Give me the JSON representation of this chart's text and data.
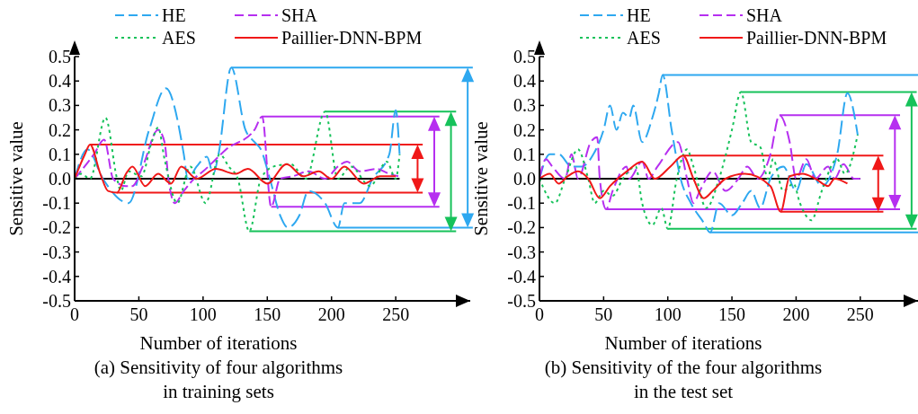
{
  "chart_data": [
    {
      "type": "line",
      "title": "(a) Sensitivity of four algorithms\nin training sets",
      "xlabel": "Number of iterations",
      "ylabel": "Sensitive value",
      "legend": "top",
      "grid": false,
      "xlim": [
        0,
        308
      ],
      "xticks": [
        0,
        50,
        100,
        150,
        200,
        250
      ],
      "ylim": [
        -0.5,
        0.5
      ],
      "yticks": [
        -0.5,
        -0.4,
        -0.3,
        -0.2,
        -0.1,
        {
          "value": 0,
          "label": "0.0"
        },
        0.1,
        0.2,
        0.3,
        0.4,
        0.5
      ],
      "series": [
        {
          "name": "HE",
          "color": "#2ea8f0",
          "line_style": "dashed",
          "x": [
            0,
            10,
            22,
            42,
            58,
            71,
            85,
            88,
            95,
            103,
            108,
            112,
            122,
            133,
            140,
            145,
            152,
            160,
            166,
            175,
            182,
            195,
            205,
            210,
            222,
            232,
            245,
            250,
            253
          ],
          "values": [
            0,
            0.12,
            0,
            -0.1,
            0.2,
            0.37,
            0.1,
            0,
            0.05,
            0.09,
            0.02,
            0.1,
            0.455,
            0.2,
            0.15,
            0.12,
            0,
            -0.15,
            -0.2,
            -0.15,
            -0.05,
            -0.1,
            -0.2,
            -0.1,
            -0.1,
            0,
            0.1,
            0.28,
            0.1
          ]
        },
        {
          "name": "SHA",
          "color": "#b62ff0",
          "line_style": "dashed",
          "x": [
            0,
            15,
            23,
            30,
            40,
            45,
            53,
            65,
            70,
            73,
            78,
            85,
            93,
            100,
            110,
            118,
            140,
            146,
            153,
            160,
            170,
            182,
            195,
            205,
            212,
            222,
            235,
            245,
            252
          ],
          "values": [
            0,
            0.1,
            0.16,
            0,
            -0.03,
            -0.03,
            0.05,
            0.2,
            0.15,
            0,
            -0.1,
            -0.05,
            0,
            0.03,
            0.08,
            0.12,
            0.2,
            0.255,
            -0.115,
            0,
            0.01,
            0.03,
            0,
            0.05,
            0.07,
            0.03,
            0.04,
            0.02,
            0.01
          ]
        },
        {
          "name": "AES",
          "color": "#16c25a",
          "line_style": "dotted",
          "x": [
            0,
            5,
            12,
            24,
            33,
            36,
            42,
            52,
            60,
            65,
            70,
            80,
            90,
            102,
            113,
            120,
            127,
            136,
            145,
            155,
            168,
            180,
            195,
            205,
            215,
            230,
            243,
            250,
            253
          ],
          "values": [
            0,
            0.02,
            0,
            0.25,
            0,
            -0.05,
            0.03,
            0.01,
            0.15,
            0.21,
            0.08,
            -0.1,
            0.05,
            -0.1,
            0.1,
            0.05,
            0,
            -0.215,
            0,
            0.05,
            0.06,
            0,
            0.275,
            0,
            0.05,
            -0.03,
            0.07,
            0,
            0.1
          ]
        },
        {
          "name": "Paillier-DNN-BPM",
          "color": "#f01818",
          "line_style": "solid",
          "x": [
            0,
            8,
            12,
            20,
            26,
            33,
            40,
            45,
            55,
            65,
            75,
            83,
            95,
            110,
            125,
            135,
            150,
            165,
            178,
            190,
            200,
            210,
            225,
            238,
            250
          ],
          "values": [
            0,
            0.1,
            0.14,
            0.02,
            -0.05,
            -0.057,
            0.02,
            0.05,
            -0.03,
            0.02,
            -0.02,
            0.05,
            0,
            0.04,
            0.02,
            0.04,
            -0.02,
            0.06,
            0.01,
            0.03,
            0,
            0.05,
            -0.02,
            0.01,
            0.01
          ]
        }
      ],
      "ref_lines": [
        {
          "axis": "y",
          "value": 0,
          "color": "#000000"
        },
        {
          "axis": "y",
          "value": 0.14,
          "color": "#f01818"
        },
        {
          "axis": "y",
          "value": -0.057,
          "color": "#f01818"
        },
        {
          "axis": "y",
          "value": 0.255,
          "color": "#b62ff0"
        },
        {
          "axis": "y",
          "value": -0.115,
          "color": "#b62ff0"
        },
        {
          "axis": "y",
          "value": 0.275,
          "color": "#16c25a"
        },
        {
          "axis": "y",
          "value": -0.215,
          "color": "#16c25a"
        },
        {
          "axis": "y",
          "value": 0.455,
          "color": "#2ea8f0"
        },
        {
          "axis": "y",
          "value": -0.2,
          "color": "#2ea8f0"
        }
      ]
    },
    {
      "type": "line",
      "title": "(b) Sensitivity of the four algorithms\nin the test set",
      "xlabel": "Number of iterations",
      "ylabel": "Sensitive value",
      "legend": "top",
      "grid": false,
      "xlim": [
        0,
        295
      ],
      "xticks": [
        0,
        50,
        100,
        150,
        200,
        250
      ],
      "ylim": [
        -0.5,
        0.5
      ],
      "yticks": [
        -0.5,
        -0.4,
        -0.3,
        -0.2,
        -0.1,
        {
          "value": 0,
          "label": "0.0"
        },
        0.1,
        0.2,
        0.3,
        0.4,
        0.5
      ],
      "series": [
        {
          "name": "HE",
          "color": "#2ea8f0",
          "line_style": "dashed",
          "x": [
            0,
            8,
            15,
            25,
            33,
            42,
            50,
            55,
            60,
            65,
            70,
            73,
            80,
            88,
            93,
            96,
            103,
            110,
            118,
            128,
            133,
            140,
            150,
            158,
            165,
            172,
            180,
            190,
            200,
            208,
            220,
            232,
            240,
            248
          ],
          "values": [
            0,
            0.1,
            0.1,
            0.05,
            0.05,
            0.1,
            0.2,
            0.3,
            0.2,
            0.27,
            0.25,
            0.3,
            0.15,
            0.25,
            0.35,
            0.425,
            0.2,
            0,
            -0.1,
            -0.18,
            -0.22,
            -0.1,
            -0.15,
            -0.1,
            -0.05,
            -0.12,
            0,
            0.05,
            -0.05,
            0.06,
            -0.03,
            0.1,
            0.35,
            0.18
          ]
        },
        {
          "name": "SHA",
          "color": "#b62ff0",
          "line_style": "dashed",
          "x": [
            0,
            5,
            10,
            20,
            25,
            30,
            40,
            45,
            47,
            52,
            57,
            68,
            70,
            80,
            85,
            92,
            108,
            115,
            120,
            125,
            135,
            145,
            155,
            162,
            170,
            180,
            187,
            195,
            200,
            208,
            215,
            225,
            230,
            237,
            245,
            250
          ],
          "values": [
            0,
            0.08,
            0.05,
            0,
            0.1,
            0,
            0.15,
            0.17,
            0,
            -0.125,
            -0.05,
            0.05,
            0,
            0.07,
            0,
            0.05,
            0.15,
            0,
            -0.1,
            -0.05,
            0.03,
            -0.05,
            0,
            0.05,
            0,
            0.1,
            0.26,
            0.15,
            0,
            0.08,
            0,
            0.05,
            0,
            0.06,
            0,
            0
          ]
        },
        {
          "name": "AES",
          "color": "#16c25a",
          "line_style": "dotted",
          "x": [
            0,
            12,
            20,
            30,
            38,
            43,
            50,
            57,
            65,
            75,
            80,
            88,
            95,
            100,
            107,
            115,
            120,
            130,
            140,
            150,
            157,
            165,
            172,
            178,
            182,
            190,
            198,
            203,
            212,
            220,
            232,
            238,
            248
          ],
          "values": [
            0,
            -0.1,
            0,
            0.12,
            0,
            -0.1,
            -0.05,
            -0.07,
            0,
            0.05,
            -0.1,
            -0.19,
            -0.12,
            -0.205,
            0,
            0.12,
            0.05,
            -0.12,
            0,
            0.2,
            0.355,
            0.15,
            0.13,
            0,
            0.08,
            -0.05,
            -0.02,
            -0.1,
            -0.17,
            -0.05,
            0.08,
            0.02,
            0.18
          ]
        },
        {
          "name": "Paillier-DNN-BPM",
          "color": "#f01818",
          "line_style": "solid",
          "x": [
            0,
            8,
            15,
            22,
            30,
            38,
            47,
            55,
            68,
            80,
            90,
            102,
            112,
            120,
            128,
            135,
            145,
            160,
            180,
            188,
            195,
            205,
            215,
            225,
            230,
            240
          ],
          "values": [
            0,
            0.02,
            -0.02,
            0.01,
            0.03,
            0,
            -0.08,
            -0.03,
            0.03,
            0.07,
            0,
            0.05,
            0.095,
            0,
            -0.08,
            -0.05,
            0,
            0.02,
            -0.03,
            -0.135,
            0.01,
            0.02,
            0,
            -0.03,
            0,
            -0.02
          ]
        }
      ],
      "ref_lines": [
        {
          "axis": "y",
          "value": 0,
          "color": "#000000"
        },
        {
          "axis": "y",
          "value": 0.095,
          "color": "#f01818"
        },
        {
          "axis": "y",
          "value": -0.135,
          "color": "#f01818"
        },
        {
          "axis": "y",
          "value": 0.26,
          "color": "#b62ff0"
        },
        {
          "axis": "y",
          "value": -0.125,
          "color": "#b62ff0"
        },
        {
          "axis": "y",
          "value": 0.355,
          "color": "#16c25a"
        },
        {
          "axis": "y",
          "value": -0.205,
          "color": "#16c25a"
        },
        {
          "axis": "y",
          "value": 0.425,
          "color": "#2ea8f0"
        },
        {
          "axis": "y",
          "value": -0.22,
          "color": "#2ea8f0"
        }
      ]
    }
  ]
}
